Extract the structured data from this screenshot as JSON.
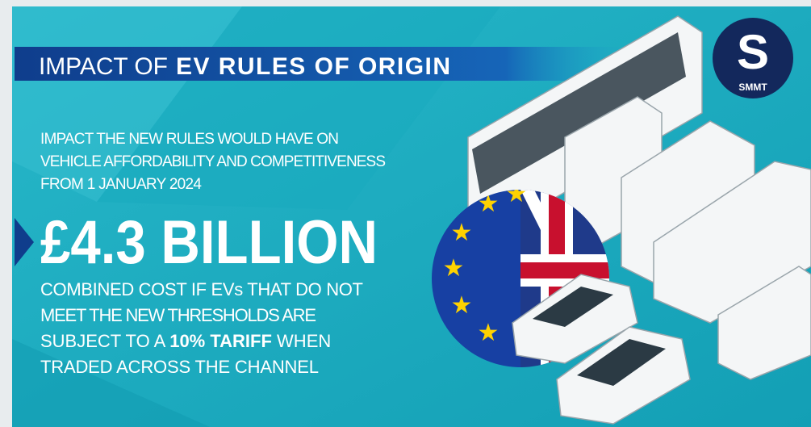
{
  "header": {
    "title_prefix": "IMPACT OF",
    "title_emphasis": "EV RULES OF ORIGIN",
    "logo": "SMMT"
  },
  "intro": [
    "IMPACT THE NEW RULES WOULD HAVE ON",
    "VEHICLE AFFORDABILITY AND COMPETITIVENESS",
    "FROM 1 JANUARY 2024"
  ],
  "headline": "£4.3 BILLION",
  "body": {
    "lines": [
      "COMBINED COST IF EVs THAT DO NOT",
      "MEET THE NEW THRESHOLDS ARE"
    ],
    "line3_before": "SUBJECT TO A",
    "line3_emphasis": "10% TARIFF",
    "line3_after": "WHEN",
    "last_line": "TRADED ACROSS THE CHANNEL"
  }
}
